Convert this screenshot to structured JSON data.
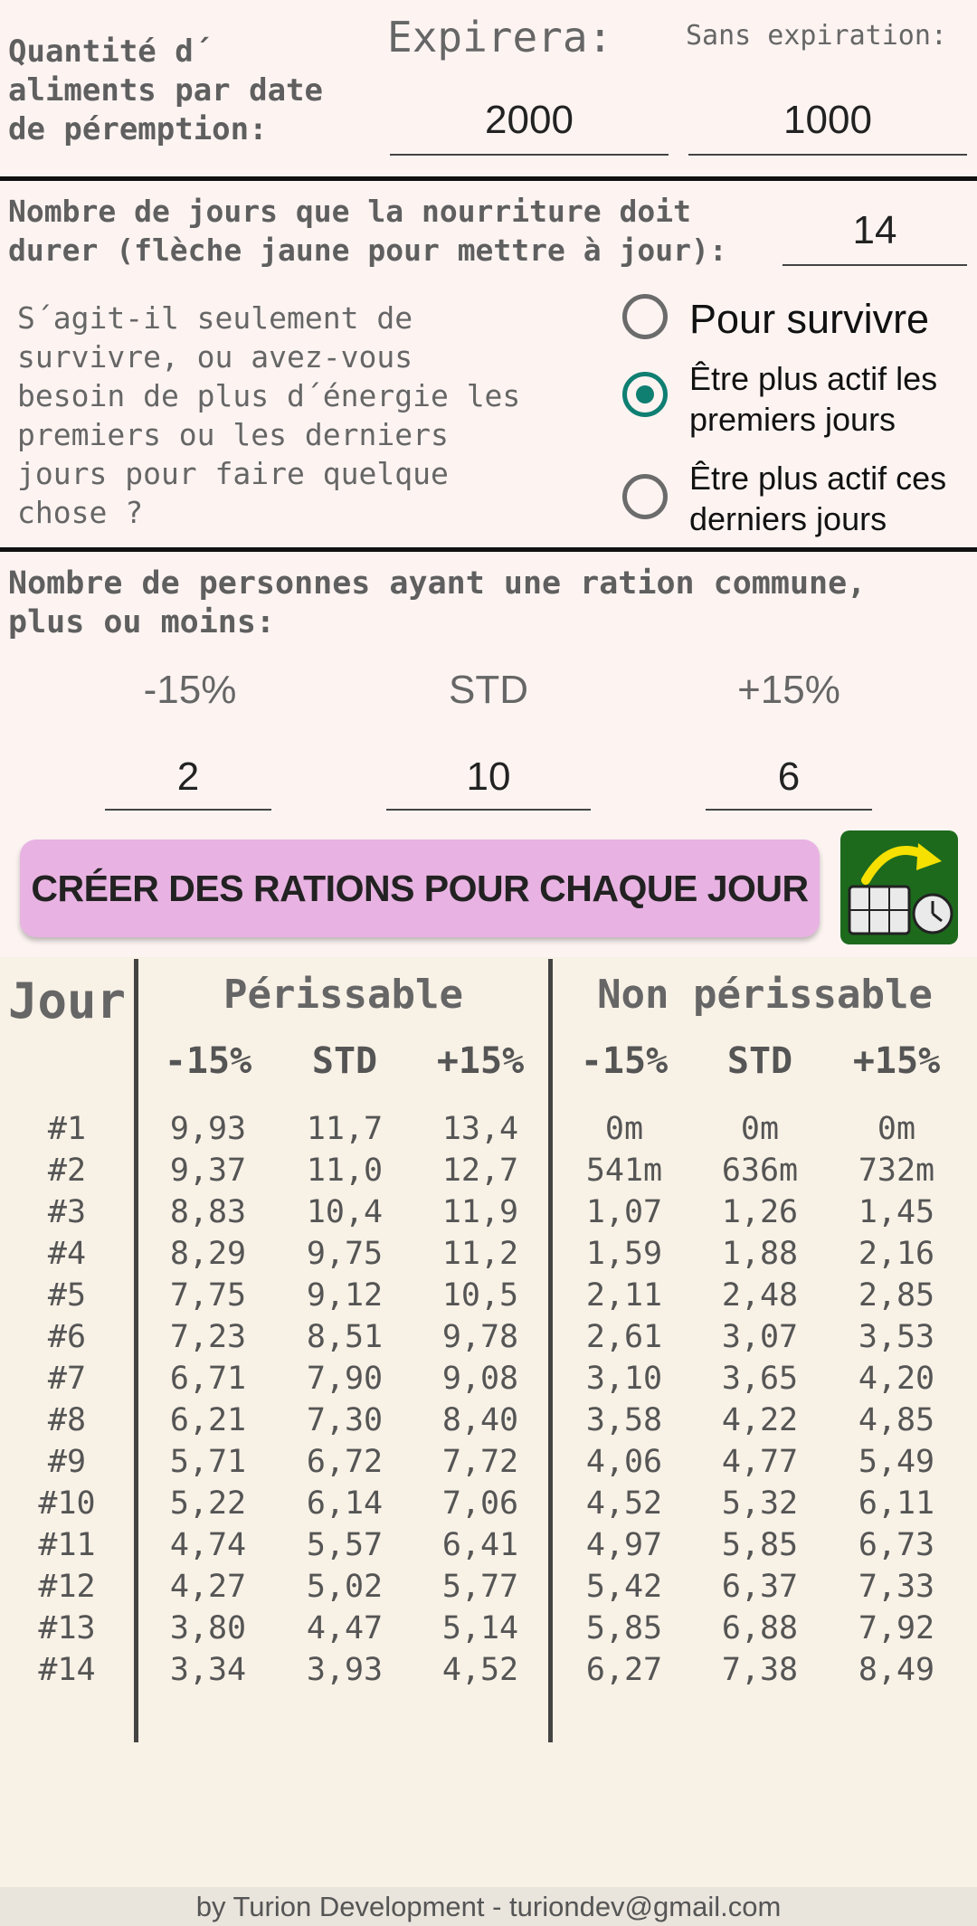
{
  "expiration": {
    "label": "Quantité d´\naliments par date\nde péremption:",
    "expire_header": "Expirera:",
    "no_expire_header": "Sans expiration:",
    "expire_value": "2000",
    "no_expire_value": "1000"
  },
  "days": {
    "label": "Nombre de jours que la nourriture doit\ndurer (flèche jaune pour mettre à jour):",
    "value": "14"
  },
  "activity": {
    "question": "S´agit-il seulement de\nsurvivre, ou avez-vous\nbesoin de plus d´énergie les\npremiers ou les derniers\njours pour faire quelque\nchose ?",
    "options": [
      {
        "label": "Pour survivre",
        "selected": false
      },
      {
        "label": "Être plus actif les\npremiers jours",
        "selected": true
      },
      {
        "label": "Être plus actif ces\nderniers jours",
        "selected": false
      }
    ]
  },
  "people": {
    "label": "Nombre de personnes ayant une ration commune,\nplus ou moins:",
    "headers": [
      "-15%",
      "STD",
      "+15%"
    ],
    "values": [
      "2",
      "10",
      "6"
    ]
  },
  "create_button": "CRÉER DES RATIONS POUR CHAQUE JOUR",
  "update_icon": "calendar-clock-update-icon",
  "colors": {
    "accent": "#0f7f72",
    "button": "#e8b3e2",
    "update_bg": "#1d6a1d",
    "arrow": "#f5e000"
  },
  "table": {
    "day_header": "Jour",
    "perishable_header": "Périssable",
    "nonperishable_header": "Non périssable",
    "sub_headers": [
      "-15%",
      "STD",
      "+15%",
      "-15%",
      "STD",
      "+15%"
    ],
    "rows": [
      [
        "#1",
        "9,93",
        "11,7",
        "13,4",
        "0m",
        "0m",
        "0m"
      ],
      [
        "#2",
        "9,37",
        "11,0",
        "12,7",
        "541m",
        "636m",
        "732m"
      ],
      [
        "#3",
        "8,83",
        "10,4",
        "11,9",
        "1,07",
        "1,26",
        "1,45"
      ],
      [
        "#4",
        "8,29",
        "9,75",
        "11,2",
        "1,59",
        "1,88",
        "2,16"
      ],
      [
        "#5",
        "7,75",
        "9,12",
        "10,5",
        "2,11",
        "2,48",
        "2,85"
      ],
      [
        "#6",
        "7,23",
        "8,51",
        "9,78",
        "2,61",
        "3,07",
        "3,53"
      ],
      [
        "#7",
        "6,71",
        "7,90",
        "9,08",
        "3,10",
        "3,65",
        "4,20"
      ],
      [
        "#8",
        "6,21",
        "7,30",
        "8,40",
        "3,58",
        "4,22",
        "4,85"
      ],
      [
        "#9",
        "5,71",
        "6,72",
        "7,72",
        "4,06",
        "4,77",
        "5,49"
      ],
      [
        "#10",
        "5,22",
        "6,14",
        "7,06",
        "4,52",
        "5,32",
        "6,11"
      ],
      [
        "#11",
        "4,74",
        "5,57",
        "6,41",
        "4,97",
        "5,85",
        "6,73"
      ],
      [
        "#12",
        "4,27",
        "5,02",
        "5,77",
        "5,42",
        "6,37",
        "7,33"
      ],
      [
        "#13",
        "3,80",
        "4,47",
        "5,14",
        "5,85",
        "6,88",
        "7,92"
      ],
      [
        "#14",
        "3,34",
        "3,93",
        "4,52",
        "6,27",
        "7,38",
        "8,49"
      ]
    ]
  },
  "footer": "by Turion Development - turiondev@gmail.com"
}
